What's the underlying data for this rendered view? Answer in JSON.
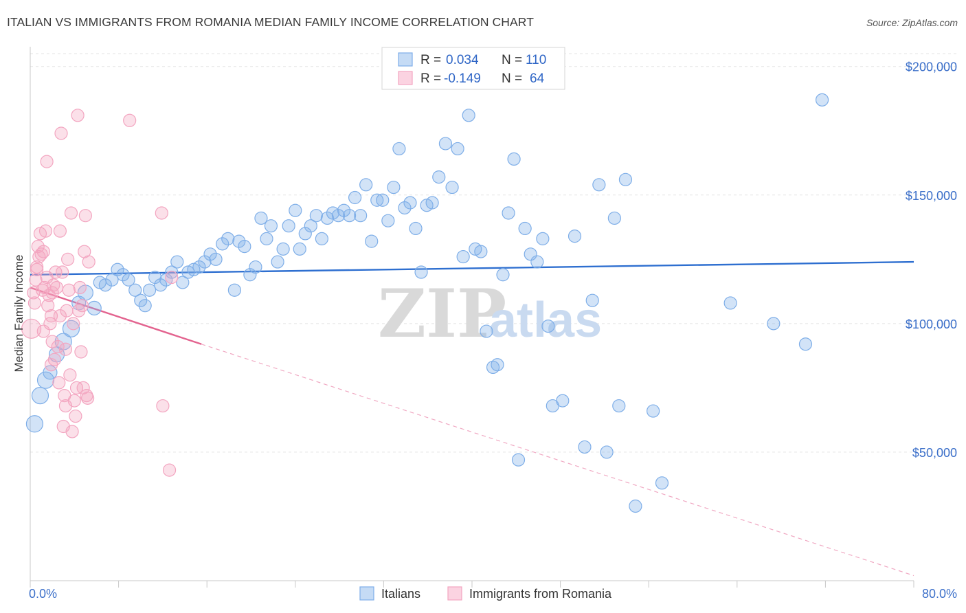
{
  "header": {
    "title": "ITALIAN VS IMMIGRANTS FROM ROMANIA MEDIAN FAMILY INCOME CORRELATION CHART",
    "source": "Source: ZipAtlas.com"
  },
  "watermark": {
    "zip": "ZIP",
    "atlas": "atlas"
  },
  "legend_top": [
    {
      "r_label": "R =",
      "r_value": "0.034",
      "n_label": "N =",
      "n_value": "110",
      "color": "#7eaee8"
    },
    {
      "r_label": "R =",
      "r_value": "-0.149",
      "n_label": "N =",
      "n_value": "64",
      "color": "#f3a5c0"
    }
  ],
  "legend_bottom": [
    {
      "label": "Italians",
      "color": "#7eaee8"
    },
    {
      "label": "Immigrants from Romania",
      "color": "#f3a5c0"
    }
  ],
  "chart_data": {
    "type": "scatter",
    "title": "ITALIAN VS IMMIGRANTS FROM ROMANIA MEDIAN FAMILY INCOME CORRELATION CHART",
    "xlabel": "",
    "ylabel": "Median Family Income",
    "xlim": [
      0,
      80
    ],
    "ylim": [
      0,
      205000
    ],
    "x_tick_labels": [
      "0.0%",
      "80.0%"
    ],
    "y_ticks": [
      50000,
      100000,
      150000,
      200000
    ],
    "y_tick_labels": [
      "$50,000",
      "$100,000",
      "$150,000",
      "$200,000"
    ],
    "grid": true,
    "legend_position": "top-center",
    "series": [
      {
        "name": "Italians",
        "color": "#7eaee8",
        "trend": {
          "x": [
            0,
            80
          ],
          "y": [
            119000,
            124000
          ],
          "style": "solid",
          "color": "#2e6fd0"
        },
        "points": [
          [
            0.4,
            61000,
            14
          ],
          [
            0.9,
            72000,
            14
          ],
          [
            1.4,
            78000,
            14
          ],
          [
            1.8,
            81000,
            12
          ],
          [
            2.4,
            88000,
            13
          ],
          [
            3.0,
            93000,
            14
          ],
          [
            3.7,
            98000,
            14
          ],
          [
            4.4,
            108000,
            12
          ],
          [
            5.0,
            112000,
            13
          ],
          [
            5.8,
            106000,
            12
          ],
          [
            6.3,
            116000,
            11
          ],
          [
            6.8,
            115000,
            11
          ],
          [
            7.4,
            117000,
            11
          ],
          [
            7.9,
            121000,
            11
          ],
          [
            8.4,
            119000,
            11
          ],
          [
            8.9,
            117000,
            11
          ],
          [
            9.5,
            113000,
            11
          ],
          [
            10.0,
            109000,
            11
          ],
          [
            10.4,
            107000,
            11
          ],
          [
            10.8,
            113000,
            11
          ],
          [
            11.3,
            118000,
            11
          ],
          [
            11.8,
            115000,
            11
          ],
          [
            12.3,
            117000,
            11
          ],
          [
            12.8,
            120000,
            11
          ],
          [
            13.3,
            124000,
            11
          ],
          [
            13.8,
            116000,
            11
          ],
          [
            14.3,
            120000,
            11
          ],
          [
            14.8,
            121000,
            11
          ],
          [
            15.3,
            122000,
            11
          ],
          [
            15.8,
            124000,
            11
          ],
          [
            16.3,
            127000,
            11
          ],
          [
            16.8,
            125000,
            11
          ],
          [
            17.4,
            131000,
            11
          ],
          [
            17.9,
            133000,
            11
          ],
          [
            18.5,
            113000,
            11
          ],
          [
            18.9,
            132000,
            11
          ],
          [
            19.4,
            130000,
            11
          ],
          [
            19.9,
            119000,
            11
          ],
          [
            20.4,
            122000,
            11
          ],
          [
            20.9,
            141000,
            11
          ],
          [
            21.4,
            133000,
            11
          ],
          [
            21.8,
            138000,
            11
          ],
          [
            22.4,
            124000,
            11
          ],
          [
            22.9,
            129000,
            11
          ],
          [
            23.4,
            138000,
            11
          ],
          [
            24.0,
            144000,
            11
          ],
          [
            24.4,
            129000,
            11
          ],
          [
            24.9,
            135000,
            11
          ],
          [
            25.4,
            138000,
            11
          ],
          [
            25.9,
            142000,
            11
          ],
          [
            26.4,
            133000,
            11
          ],
          [
            26.9,
            141000,
            11
          ],
          [
            27.4,
            143000,
            11
          ],
          [
            27.9,
            142000,
            11
          ],
          [
            28.4,
            144000,
            11
          ],
          [
            28.9,
            142000,
            11
          ],
          [
            29.4,
            149000,
            11
          ],
          [
            29.9,
            142000,
            11
          ],
          [
            30.4,
            154000,
            11
          ],
          [
            30.9,
            132000,
            11
          ],
          [
            31.4,
            148000,
            11
          ],
          [
            31.9,
            148000,
            11
          ],
          [
            32.4,
            140000,
            11
          ],
          [
            32.9,
            153000,
            11
          ],
          [
            33.4,
            168000,
            11
          ],
          [
            33.9,
            145000,
            11
          ],
          [
            34.4,
            147000,
            11
          ],
          [
            34.9,
            137000,
            11
          ],
          [
            35.4,
            120000,
            11
          ],
          [
            35.9,
            146000,
            11
          ],
          [
            36.4,
            147000,
            11
          ],
          [
            37.0,
            157000,
            11
          ],
          [
            37.6,
            170000,
            11
          ],
          [
            38.2,
            153000,
            11
          ],
          [
            38.7,
            168000,
            11
          ],
          [
            39.2,
            126000,
            11
          ],
          [
            39.7,
            181000,
            11
          ],
          [
            40.3,
            129000,
            11
          ],
          [
            40.8,
            128000,
            11
          ],
          [
            41.3,
            97000,
            11
          ],
          [
            41.9,
            83000,
            11
          ],
          [
            42.3,
            84000,
            11
          ],
          [
            42.8,
            119000,
            11
          ],
          [
            43.3,
            143000,
            11
          ],
          [
            43.8,
            164000,
            11
          ],
          [
            44.2,
            47000,
            11
          ],
          [
            44.8,
            137000,
            11
          ],
          [
            45.3,
            127000,
            11
          ],
          [
            45.9,
            124000,
            11
          ],
          [
            46.4,
            133000,
            11
          ],
          [
            46.9,
            99000,
            11
          ],
          [
            47.3,
            68000,
            11
          ],
          [
            48.2,
            70000,
            11
          ],
          [
            49.3,
            134000,
            11
          ],
          [
            50.2,
            52000,
            11
          ],
          [
            50.9,
            109000,
            11
          ],
          [
            51.5,
            154000,
            11
          ],
          [
            52.2,
            50000,
            11
          ],
          [
            52.9,
            141000,
            11
          ],
          [
            53.3,
            68000,
            11
          ],
          [
            53.9,
            156000,
            11
          ],
          [
            54.8,
            29000,
            11
          ],
          [
            56.4,
            66000,
            11
          ],
          [
            57.2,
            38000,
            11
          ],
          [
            63.4,
            108000,
            11
          ],
          [
            67.3,
            100000,
            11
          ],
          [
            70.2,
            92000,
            11
          ],
          [
            71.7,
            187000,
            11
          ]
        ]
      },
      {
        "name": "Immigrants from Romania",
        "color": "#f3a5c0",
        "trend": {
          "x": [
            0,
            15.5
          ],
          "y": [
            114000,
            92000
          ],
          "style": "solid",
          "color": "#e3638f",
          "extension": {
            "x": [
              15.5,
              80
            ],
            "y": [
              92000,
              2000
            ],
            "style": "dashed"
          }
        },
        "points": [
          [
            0.1,
            98000,
            16
          ],
          [
            0.3,
            112000,
            11
          ],
          [
            0.4,
            108000,
            11
          ],
          [
            0.5,
            117000,
            11
          ],
          [
            0.6,
            122000,
            11
          ],
          [
            0.7,
            130000,
            11
          ],
          [
            0.8,
            126000,
            11
          ],
          [
            0.9,
            135000,
            11
          ],
          [
            1.0,
            127000,
            11
          ],
          [
            1.1,
            113000,
            11
          ],
          [
            1.2,
            128000,
            11
          ],
          [
            1.3,
            114000,
            11
          ],
          [
            1.4,
            136000,
            11
          ],
          [
            1.5,
            118000,
            11
          ],
          [
            1.6,
            107000,
            11
          ],
          [
            1.7,
            111000,
            11
          ],
          [
            1.8,
            100000,
            11
          ],
          [
            1.9,
            103000,
            11
          ],
          [
            2.0,
            93000,
            11
          ],
          [
            2.1,
            115000,
            11
          ],
          [
            2.2,
            86000,
            11
          ],
          [
            2.3,
            120000,
            11
          ],
          [
            2.4,
            114000,
            11
          ],
          [
            2.5,
            91000,
            11
          ],
          [
            2.6,
            77000,
            11
          ],
          [
            2.7,
            136000,
            11
          ],
          [
            2.8,
            174000,
            11
          ],
          [
            2.9,
            120000,
            11
          ],
          [
            3.0,
            60000,
            11
          ],
          [
            3.1,
            72000,
            11
          ],
          [
            3.2,
            68000,
            11
          ],
          [
            3.3,
            105000,
            11
          ],
          [
            3.4,
            125000,
            11
          ],
          [
            3.5,
            113000,
            11
          ],
          [
            3.6,
            80000,
            11
          ],
          [
            3.7,
            143000,
            11
          ],
          [
            3.8,
            58000,
            11
          ],
          [
            3.9,
            100000,
            11
          ],
          [
            4.0,
            70000,
            11
          ],
          [
            4.1,
            64000,
            11
          ],
          [
            4.2,
            75000,
            11
          ],
          [
            4.3,
            181000,
            11
          ],
          [
            4.5,
            114000,
            11
          ],
          [
            4.6,
            89000,
            11
          ],
          [
            4.7,
            107000,
            11
          ],
          [
            4.8,
            75000,
            11
          ],
          [
            4.9,
            128000,
            11
          ],
          [
            5.0,
            142000,
            11
          ],
          [
            5.1,
            72000,
            11
          ],
          [
            5.2,
            71000,
            11
          ],
          [
            5.3,
            124000,
            11
          ],
          [
            1.5,
            163000,
            11
          ],
          [
            1.2,
            97000,
            11
          ],
          [
            2.0,
            112000,
            11
          ],
          [
            0.6,
            121000,
            11
          ],
          [
            9.0,
            179000,
            11
          ],
          [
            11.9,
            143000,
            11
          ],
          [
            12.0,
            68000,
            11
          ],
          [
            12.6,
            43000,
            11
          ],
          [
            12.8,
            118000,
            11
          ],
          [
            2.7,
            103000,
            11
          ],
          [
            3.2,
            90000,
            11
          ],
          [
            1.9,
            84000,
            11
          ],
          [
            4.4,
            105000,
            11
          ]
        ]
      }
    ]
  }
}
